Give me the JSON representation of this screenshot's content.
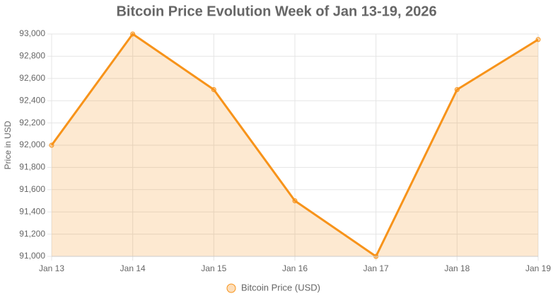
{
  "chart_data": {
    "type": "line",
    "title": "Bitcoin Price Evolution Week of Jan 13-19, 2026",
    "y_label": "Price in USD",
    "categories": [
      "Jan 13",
      "Jan 14",
      "Jan 15",
      "Jan 16",
      "Jan 17",
      "Jan 18",
      "Jan 19"
    ],
    "series": [
      {
        "name": "Bitcoin Price (USD)",
        "color": "#f7931a",
        "values": [
          92000,
          93000,
          92500,
          91500,
          91000,
          92500,
          92950
        ]
      }
    ],
    "fill": true,
    "ylim": [
      91000,
      93000
    ],
    "yticks": [
      {
        "value": 91000,
        "label": "91,000"
      },
      {
        "value": 91200,
        "label": "91,200"
      },
      {
        "value": 91400,
        "label": "91,400"
      },
      {
        "value": 91600,
        "label": "91,600"
      },
      {
        "value": 91800,
        "label": "91,800"
      },
      {
        "value": 92000,
        "label": "92,000"
      },
      {
        "value": 92200,
        "label": "92,200"
      },
      {
        "value": 92400,
        "label": "92,400"
      },
      {
        "value": 92600,
        "label": "92,600"
      },
      {
        "value": 92800,
        "label": "92,800"
      },
      {
        "value": 93000,
        "label": "93,000"
      }
    ],
    "grid": true,
    "legend": "bottom"
  }
}
